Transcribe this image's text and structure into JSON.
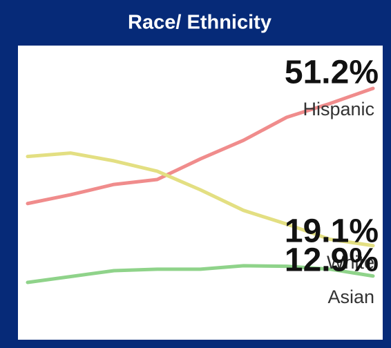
{
  "chart_data": {
    "type": "line",
    "title": "Race/ Ethnicity",
    "categories": [
      null,
      null,
      null,
      null,
      null,
      null,
      null,
      null,
      null
    ],
    "series": [
      {
        "name": "Hispanic",
        "color": "#f08c8c",
        "values": [
          27.7,
          29.5,
          31.6,
          32.6,
          36.8,
          40.6,
          45.3,
          48.1,
          51.2
        ],
        "value_labels": [
          null,
          null,
          null,
          null,
          null,
          null,
          null,
          null,
          "51.2%"
        ]
      },
      {
        "name": "White",
        "color": "#e3df82",
        "values": [
          37.3,
          38.0,
          36.4,
          34.3,
          30.5,
          26.3,
          23.5,
          20.4,
          19.1
        ],
        "value_labels": [
          null,
          null,
          null,
          null,
          null,
          null,
          null,
          null,
          "19.1%"
        ]
      },
      {
        "name": "Asian",
        "color": "#8fd38a",
        "values": [
          11.6,
          12.8,
          14.0,
          14.3,
          14.3,
          15.0,
          14.9,
          14.3,
          12.9
        ],
        "value_labels": [
          null,
          null,
          null,
          null,
          null,
          null,
          null,
          null,
          "12.9%"
        ]
      }
    ]
  }
}
